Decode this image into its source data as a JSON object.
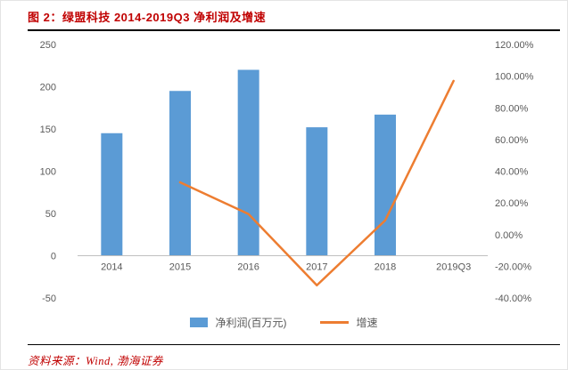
{
  "header": {
    "title": "图 2：绿盟科技 2014-2019Q3 净利润及增速"
  },
  "footer": {
    "source": "资料来源：Wind,  渤海证券"
  },
  "colors": {
    "bar": "#5B9BD5",
    "line": "#ED7D31",
    "accent_red": "#C00000",
    "axis_text": "#595959",
    "axis_line": "#BFBFBF"
  },
  "chart_data": {
    "type": "combo-bar-line",
    "title": "绿盟科技 2014-2019Q3 净利润及增速",
    "categories": [
      "2014",
      "2015",
      "2016",
      "2017",
      "2018",
      "2019Q3"
    ],
    "series": [
      {
        "name": "净利润(百万元)",
        "type": "bar",
        "axis": "left",
        "color": "#5B9BD5",
        "values": [
          145,
          195,
          220,
          152,
          167,
          null
        ]
      },
      {
        "name": "增速",
        "type": "line",
        "axis": "right",
        "color": "#ED7D31",
        "values_percent": [
          null,
          33,
          13,
          -32,
          9,
          97
        ]
      }
    ],
    "left_axis": {
      "min": -50,
      "max": 250,
      "ticks": [
        250,
        200,
        150,
        100,
        50,
        0,
        -50
      ]
    },
    "right_axis": {
      "min": -40,
      "max": 120,
      "ticks": [
        {
          "value": 120,
          "label": "120.00%"
        },
        {
          "value": 100,
          "label": "100.00%"
        },
        {
          "value": 80,
          "label": "80.00%"
        },
        {
          "value": 60,
          "label": "60.00%"
        },
        {
          "value": 40,
          "label": "40.00%"
        },
        {
          "value": 20,
          "label": "20.00%"
        },
        {
          "value": 0,
          "label": "0.00%"
        },
        {
          "value": -20,
          "label": "-20.00%"
        },
        {
          "value": -40,
          "label": "-40.00%"
        }
      ]
    },
    "legend": [
      "净利润(百万元)",
      "增速"
    ],
    "grid": false,
    "legend_position": "bottom"
  }
}
